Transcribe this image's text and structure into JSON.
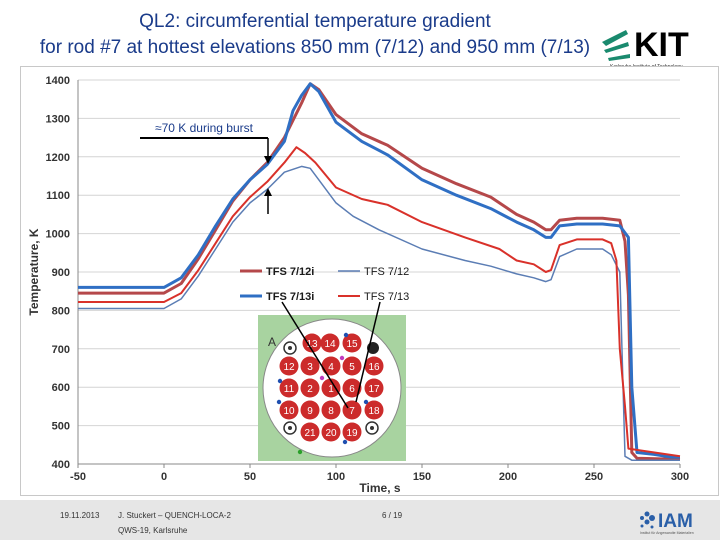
{
  "slide": {
    "title_line1": "QL2: circumferential temperature gradient",
    "title_line2": "for rod #7 at hottest elevations 850 mm (7/12) and 950 mm (7/13)",
    "date": "19.11.2013",
    "author": "J. Stuckert – QUENCH-LOCA-2",
    "meeting": "QWS-19, Karlsruhe",
    "page": "6 / 19"
  },
  "logos": {
    "kit_text": "KIT",
    "kit_subtitle": "Karlsruhe Institute of Technology",
    "iam_text": "IAM",
    "iam_subtitle": "Institut für Angewandte Materialien"
  },
  "chart_data": {
    "type": "line",
    "title": "",
    "xlabel": "Time, s",
    "ylabel": "Temperature, K",
    "xlim": [
      -50,
      300
    ],
    "ylim": [
      400,
      1400
    ],
    "xticks": [
      -50,
      0,
      50,
      100,
      150,
      200,
      250,
      300
    ],
    "yticks": [
      400,
      500,
      600,
      700,
      800,
      900,
      1000,
      1100,
      1200,
      1300,
      1400
    ],
    "grid": "horizontal",
    "legend_position": "center-right",
    "annotation": "≈70 K during burst",
    "series": [
      {
        "name": "TFS 7/12i",
        "color": "#b5484a",
        "width": 3,
        "points": [
          [
            -50,
            845
          ],
          [
            0,
            845
          ],
          [
            10,
            870
          ],
          [
            20,
            935
          ],
          [
            30,
            1010
          ],
          [
            40,
            1085
          ],
          [
            50,
            1140
          ],
          [
            60,
            1185
          ],
          [
            70,
            1250
          ],
          [
            80,
            1340
          ],
          [
            85,
            1390
          ],
          [
            90,
            1375
          ],
          [
            100,
            1310
          ],
          [
            115,
            1260
          ],
          [
            130,
            1230
          ],
          [
            150,
            1170
          ],
          [
            170,
            1130
          ],
          [
            190,
            1095
          ],
          [
            205,
            1050
          ],
          [
            215,
            1030
          ],
          [
            222,
            1010
          ],
          [
            225,
            1010
          ],
          [
            230,
            1035
          ],
          [
            240,
            1040
          ],
          [
            255,
            1040
          ],
          [
            265,
            1035
          ],
          [
            268,
            980
          ],
          [
            270,
            840
          ],
          [
            272,
            430
          ],
          [
            275,
            415
          ],
          [
            300,
            412
          ]
        ]
      },
      {
        "name": "TFS 7/12",
        "color": "#5b7db4",
        "width": 1.5,
        "points": [
          [
            -50,
            805
          ],
          [
            0,
            805
          ],
          [
            10,
            830
          ],
          [
            20,
            890
          ],
          [
            30,
            960
          ],
          [
            40,
            1030
          ],
          [
            50,
            1080
          ],
          [
            60,
            1115
          ],
          [
            70,
            1160
          ],
          [
            80,
            1175
          ],
          [
            85,
            1170
          ],
          [
            90,
            1140
          ],
          [
            100,
            1080
          ],
          [
            110,
            1045
          ],
          [
            125,
            1010
          ],
          [
            150,
            960
          ],
          [
            175,
            930
          ],
          [
            190,
            915
          ],
          [
            205,
            895
          ],
          [
            215,
            885
          ],
          [
            222,
            875
          ],
          [
            225,
            880
          ],
          [
            230,
            940
          ],
          [
            240,
            960
          ],
          [
            255,
            960
          ],
          [
            260,
            945
          ],
          [
            265,
            900
          ],
          [
            268,
            420
          ],
          [
            272,
            410
          ],
          [
            300,
            410
          ]
        ]
      },
      {
        "name": "TFS 7/13i",
        "color": "#2f6fc4",
        "width": 3,
        "points": [
          [
            -50,
            860
          ],
          [
            0,
            860
          ],
          [
            10,
            885
          ],
          [
            20,
            945
          ],
          [
            30,
            1020
          ],
          [
            40,
            1090
          ],
          [
            50,
            1140
          ],
          [
            60,
            1180
          ],
          [
            70,
            1240
          ],
          [
            75,
            1320
          ],
          [
            80,
            1360
          ],
          [
            85,
            1390
          ],
          [
            90,
            1370
          ],
          [
            100,
            1290
          ],
          [
            115,
            1240
          ],
          [
            130,
            1205
          ],
          [
            150,
            1140
          ],
          [
            170,
            1100
          ],
          [
            190,
            1065
          ],
          [
            205,
            1030
          ],
          [
            215,
            1010
          ],
          [
            222,
            990
          ],
          [
            225,
            990
          ],
          [
            230,
            1020
          ],
          [
            240,
            1025
          ],
          [
            255,
            1025
          ],
          [
            265,
            1020
          ],
          [
            270,
            990
          ],
          [
            272,
            600
          ],
          [
            275,
            430
          ],
          [
            285,
            425
          ],
          [
            295,
            418
          ],
          [
            300,
            418
          ]
        ]
      },
      {
        "name": "TFS 7/13",
        "color": "#d9312a",
        "width": 2,
        "points": [
          [
            -50,
            822
          ],
          [
            0,
            822
          ],
          [
            10,
            845
          ],
          [
            20,
            905
          ],
          [
            30,
            975
          ],
          [
            40,
            1045
          ],
          [
            50,
            1095
          ],
          [
            60,
            1135
          ],
          [
            70,
            1185
          ],
          [
            77,
            1225
          ],
          [
            82,
            1210
          ],
          [
            88,
            1185
          ],
          [
            100,
            1120
          ],
          [
            115,
            1090
          ],
          [
            130,
            1075
          ],
          [
            150,
            1030
          ],
          [
            175,
            990
          ],
          [
            195,
            960
          ],
          [
            205,
            930
          ],
          [
            215,
            920
          ],
          [
            222,
            900
          ],
          [
            225,
            905
          ],
          [
            230,
            970
          ],
          [
            240,
            985
          ],
          [
            255,
            985
          ],
          [
            260,
            975
          ],
          [
            263,
            930
          ],
          [
            265,
            700
          ],
          [
            268,
            550
          ],
          [
            270,
            440
          ],
          [
            300,
            420
          ]
        ]
      }
    ]
  },
  "bundle": {
    "label_a": "A",
    "rods": [
      "13",
      "14",
      "15",
      "12",
      "3",
      "4",
      "5",
      "16",
      "11",
      "2",
      "1",
      "6",
      "17",
      "10",
      "9",
      "8",
      "7",
      "18",
      "21",
      "20",
      "19"
    ]
  }
}
